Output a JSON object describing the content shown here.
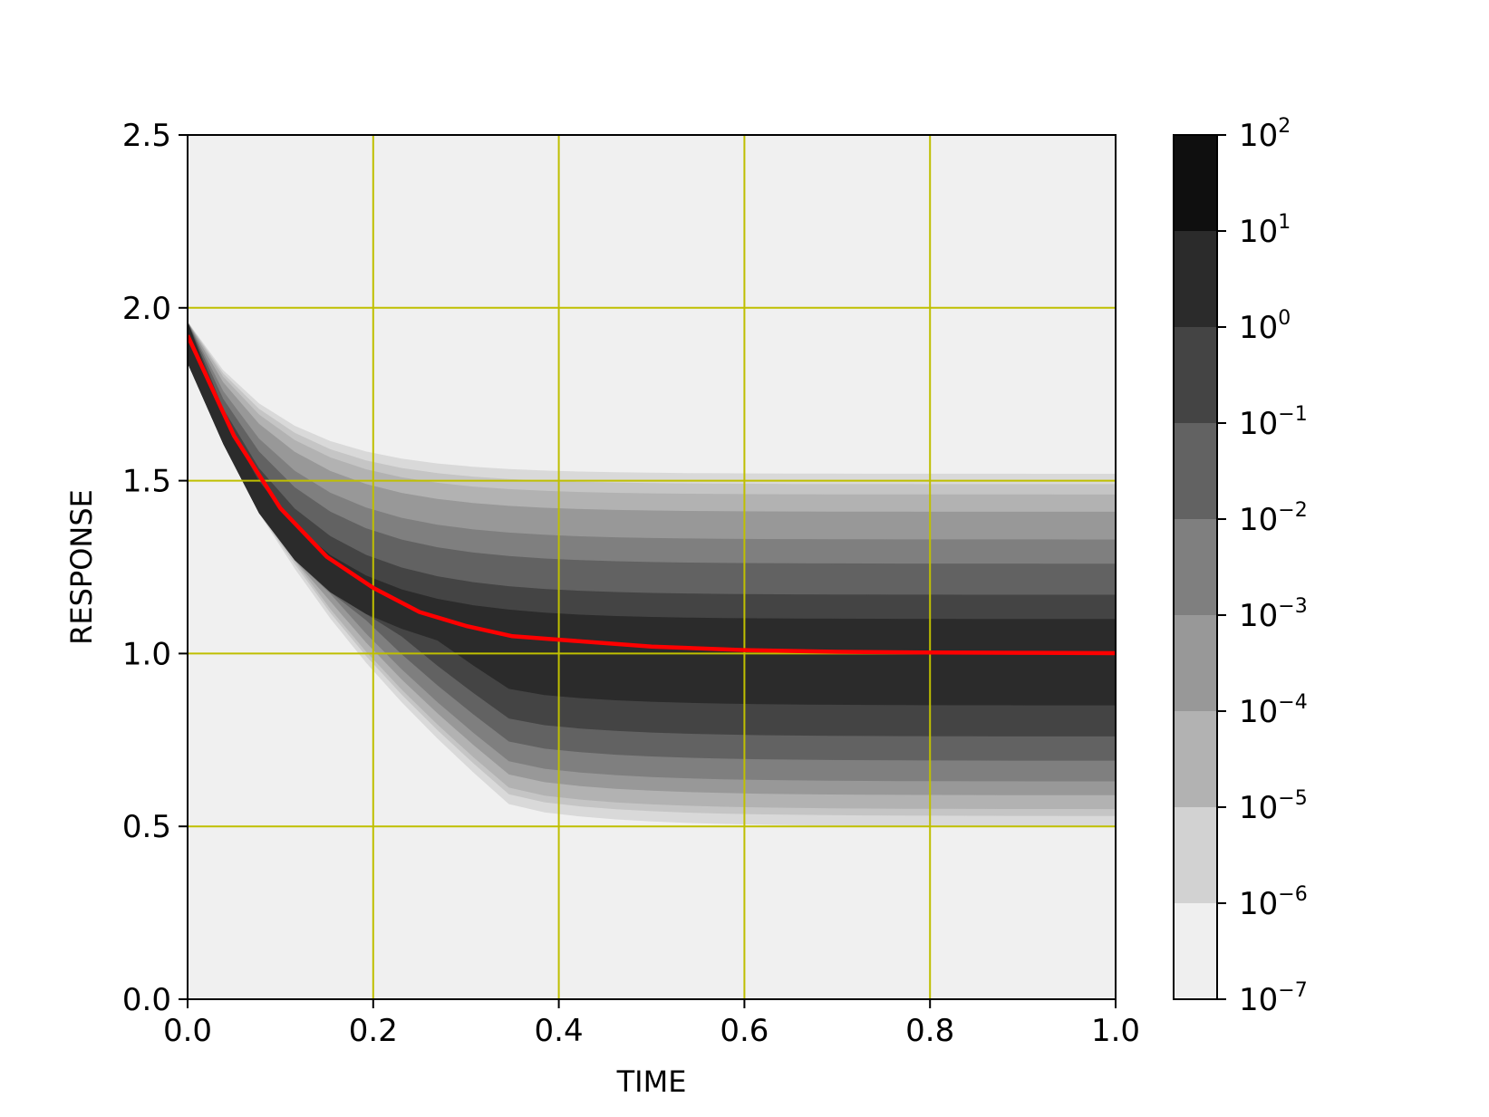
{
  "chart_data": {
    "type": "contour",
    "xlabel": "TIME",
    "ylabel": "RESPONSE",
    "xlim": [
      0.0,
      1.0
    ],
    "ylim": [
      0.0,
      2.5
    ],
    "x_ticks": [
      "0.0",
      "0.2",
      "0.4",
      "0.6",
      "0.8",
      "1.0"
    ],
    "y_ticks": [
      "0.0",
      "0.5",
      "1.0",
      "1.5",
      "2.0",
      "2.5"
    ],
    "grid": true,
    "grid_color": "#bfbf00",
    "background_color": "#f0f0f0",
    "colormap": "Greys",
    "colorbar": {
      "scale": "log",
      "ticks": [
        {
          "base": "10",
          "exp": "2"
        },
        {
          "base": "10",
          "exp": "1"
        },
        {
          "base": "10",
          "exp": "0"
        },
        {
          "base": "10",
          "exp": "−1"
        },
        {
          "base": "10",
          "exp": "−2"
        },
        {
          "base": "10",
          "exp": "−3"
        },
        {
          "base": "10",
          "exp": "−4"
        },
        {
          "base": "10",
          "exp": "−5"
        },
        {
          "base": "10",
          "exp": "−6"
        },
        {
          "base": "10",
          "exp": "−7"
        }
      ],
      "bin_colors": [
        "#0f0f0f",
        "#2b2b2b",
        "#444444",
        "#626262",
        "#7f7f7f",
        "#989898",
        "#b2b2b2",
        "#d2d2d2",
        "#efefef"
      ]
    },
    "contour_bands": [
      {
        "color": "#d9d9d9",
        "upper_final": 1.52,
        "lower_final": 0.5
      },
      {
        "color": "#c5c5c5",
        "upper_final": 1.49,
        "lower_final": 0.53
      },
      {
        "color": "#b2b2b2",
        "upper_final": 1.46,
        "lower_final": 0.55
      },
      {
        "color": "#989898",
        "upper_final": 1.41,
        "lower_final": 0.59
      },
      {
        "color": "#7f7f7f",
        "upper_final": 1.33,
        "lower_final": 0.63
      },
      {
        "color": "#626262",
        "upper_final": 1.26,
        "lower_final": 0.69
      },
      {
        "color": "#444444",
        "upper_final": 1.17,
        "lower_final": 0.76
      },
      {
        "color": "#2b2b2b",
        "upper_final": 1.1,
        "lower_final": 0.85
      }
    ],
    "band_bottom": 0.09,
    "series": [
      {
        "color": "#ff0000",
        "x": [
          0.0,
          0.05,
          0.1,
          0.15,
          0.2,
          0.25,
          0.3,
          0.35,
          0.4,
          0.5,
          0.6,
          0.7,
          0.8,
          0.9,
          1.0
        ],
        "y": [
          1.92,
          1.63,
          1.42,
          1.28,
          1.19,
          1.12,
          1.08,
          1.05,
          1.04,
          1.02,
          1.01,
          1.005,
          1.003,
          1.002,
          1.001
        ]
      }
    ]
  }
}
